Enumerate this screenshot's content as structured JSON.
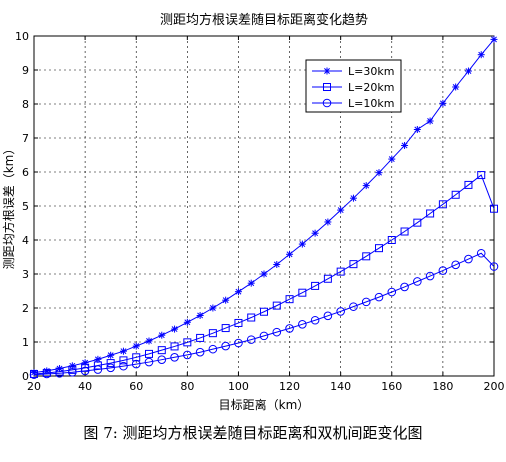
{
  "caption": "图 7: 测距均方根误差随目标距离和双机间距变化图",
  "chart_data": {
    "type": "line",
    "title": "测距均方根误差随目标距离变化趋势",
    "xlabel": "目标距离（km）",
    "ylabel": "测距均方根误差（km）",
    "xlim": [
      20,
      200
    ],
    "ylim": [
      0,
      10
    ],
    "xticks": [
      20,
      40,
      60,
      80,
      100,
      120,
      140,
      160,
      180,
      200
    ],
    "yticks": [
      0,
      1,
      2,
      3,
      4,
      5,
      6,
      7,
      8,
      9,
      10
    ],
    "grid": true,
    "legend_position": "top-right",
    "line_color": "#0000ff",
    "x": [
      20,
      25,
      30,
      35,
      40,
      45,
      50,
      55,
      60,
      65,
      70,
      75,
      80,
      85,
      90,
      95,
      100,
      105,
      110,
      115,
      120,
      125,
      130,
      135,
      140,
      145,
      150,
      155,
      160,
      165,
      170,
      175,
      180,
      185,
      190,
      195,
      200
    ],
    "series": [
      {
        "name": "L=30km",
        "marker": "star",
        "values": [
          0.1,
          0.15,
          0.22,
          0.3,
          0.39,
          0.49,
          0.61,
          0.73,
          0.88,
          1.03,
          1.2,
          1.38,
          1.58,
          1.78,
          2.0,
          2.23,
          2.48,
          2.73,
          3.0,
          3.28,
          3.58,
          3.88,
          4.2,
          4.53,
          4.88,
          5.23,
          5.6,
          5.98,
          6.38,
          6.78,
          7.25,
          7.5,
          8.02,
          8.5,
          8.97,
          9.45,
          9.9
        ]
      },
      {
        "name": "L=20km",
        "marker": "square",
        "values": [
          0.06,
          0.09,
          0.13,
          0.18,
          0.24,
          0.31,
          0.38,
          0.46,
          0.55,
          0.65,
          0.76,
          0.87,
          0.99,
          1.12,
          1.26,
          1.41,
          1.56,
          1.72,
          1.89,
          2.07,
          2.26,
          2.45,
          2.65,
          2.86,
          3.07,
          3.29,
          3.52,
          3.76,
          4.0,
          4.25,
          4.51,
          4.78,
          5.05,
          5.33,
          5.62,
          5.91,
          4.92
        ]
      },
      {
        "name": "L=10km",
        "marker": "circle",
        "values": [
          0.04,
          0.06,
          0.08,
          0.11,
          0.15,
          0.19,
          0.24,
          0.29,
          0.35,
          0.41,
          0.48,
          0.55,
          0.62,
          0.7,
          0.79,
          0.88,
          0.97,
          1.07,
          1.18,
          1.29,
          1.4,
          1.52,
          1.64,
          1.77,
          1.9,
          2.04,
          2.18,
          2.32,
          2.47,
          2.62,
          2.78,
          2.94,
          3.1,
          3.27,
          3.44,
          3.61,
          3.22
        ]
      }
    ]
  }
}
